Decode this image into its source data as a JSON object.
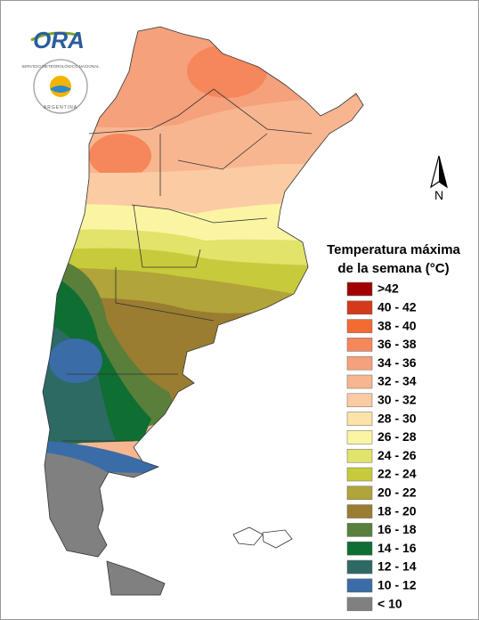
{
  "logo": {
    "text": "ORA"
  },
  "seal": {
    "top": "SERVICIO METEOROLÓGICO NACIONAL",
    "bottom": "ARGENTINA"
  },
  "compass": "N",
  "legend": {
    "title_lines": [
      "Temperatura máxima",
      "de la semana (°C)"
    ],
    "items": [
      {
        "label": ">42",
        "color": "#a00000"
      },
      {
        "label": "40 - 42",
        "color": "#d43a1a"
      },
      {
        "label": "38 - 40",
        "color": "#f36a32"
      },
      {
        "label": "36 - 38",
        "color": "#f6875a"
      },
      {
        "label": "34 - 36",
        "color": "#f5a17c"
      },
      {
        "label": "32 - 34",
        "color": "#f8b690"
      },
      {
        "label": "30 - 32",
        "color": "#fbcba3"
      },
      {
        "label": "28 - 30",
        "color": "#fde3a8"
      },
      {
        "label": "26 - 28",
        "color": "#fbf5a3"
      },
      {
        "label": "24 - 26",
        "color": "#e1e36b"
      },
      {
        "label": "22 - 24",
        "color": "#c7cb3b"
      },
      {
        "label": "20 - 22",
        "color": "#b0a43a"
      },
      {
        "label": "18 - 20",
        "color": "#9a7d30"
      },
      {
        "label": "16 - 18",
        "color": "#5a7f3a"
      },
      {
        "label": "14 - 16",
        "color": "#0f6e31"
      },
      {
        "label": "12 - 14",
        "color": "#2c6a63"
      },
      {
        "label": "10 - 12",
        "color": "#3a6ca8"
      },
      {
        "label": "< 10",
        "color": "#808080"
      }
    ]
  }
}
